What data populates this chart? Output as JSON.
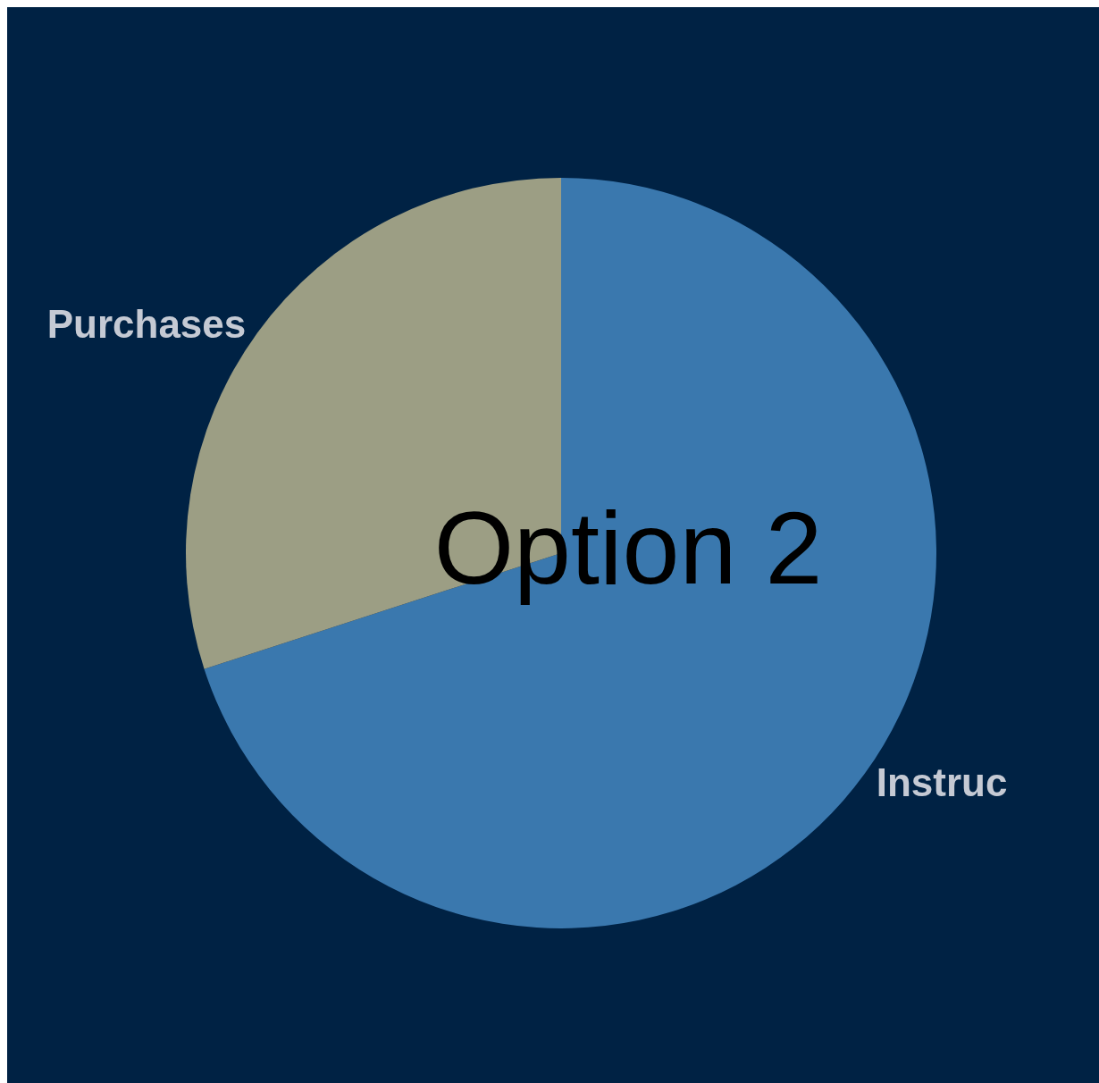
{
  "chart_data": {
    "type": "pie",
    "title": "Option 2",
    "categories": [
      "Instruc",
      "Purchases"
    ],
    "values": [
      70,
      30
    ],
    "colors": [
      "#3a78ae",
      "#9c9e84"
    ]
  }
}
